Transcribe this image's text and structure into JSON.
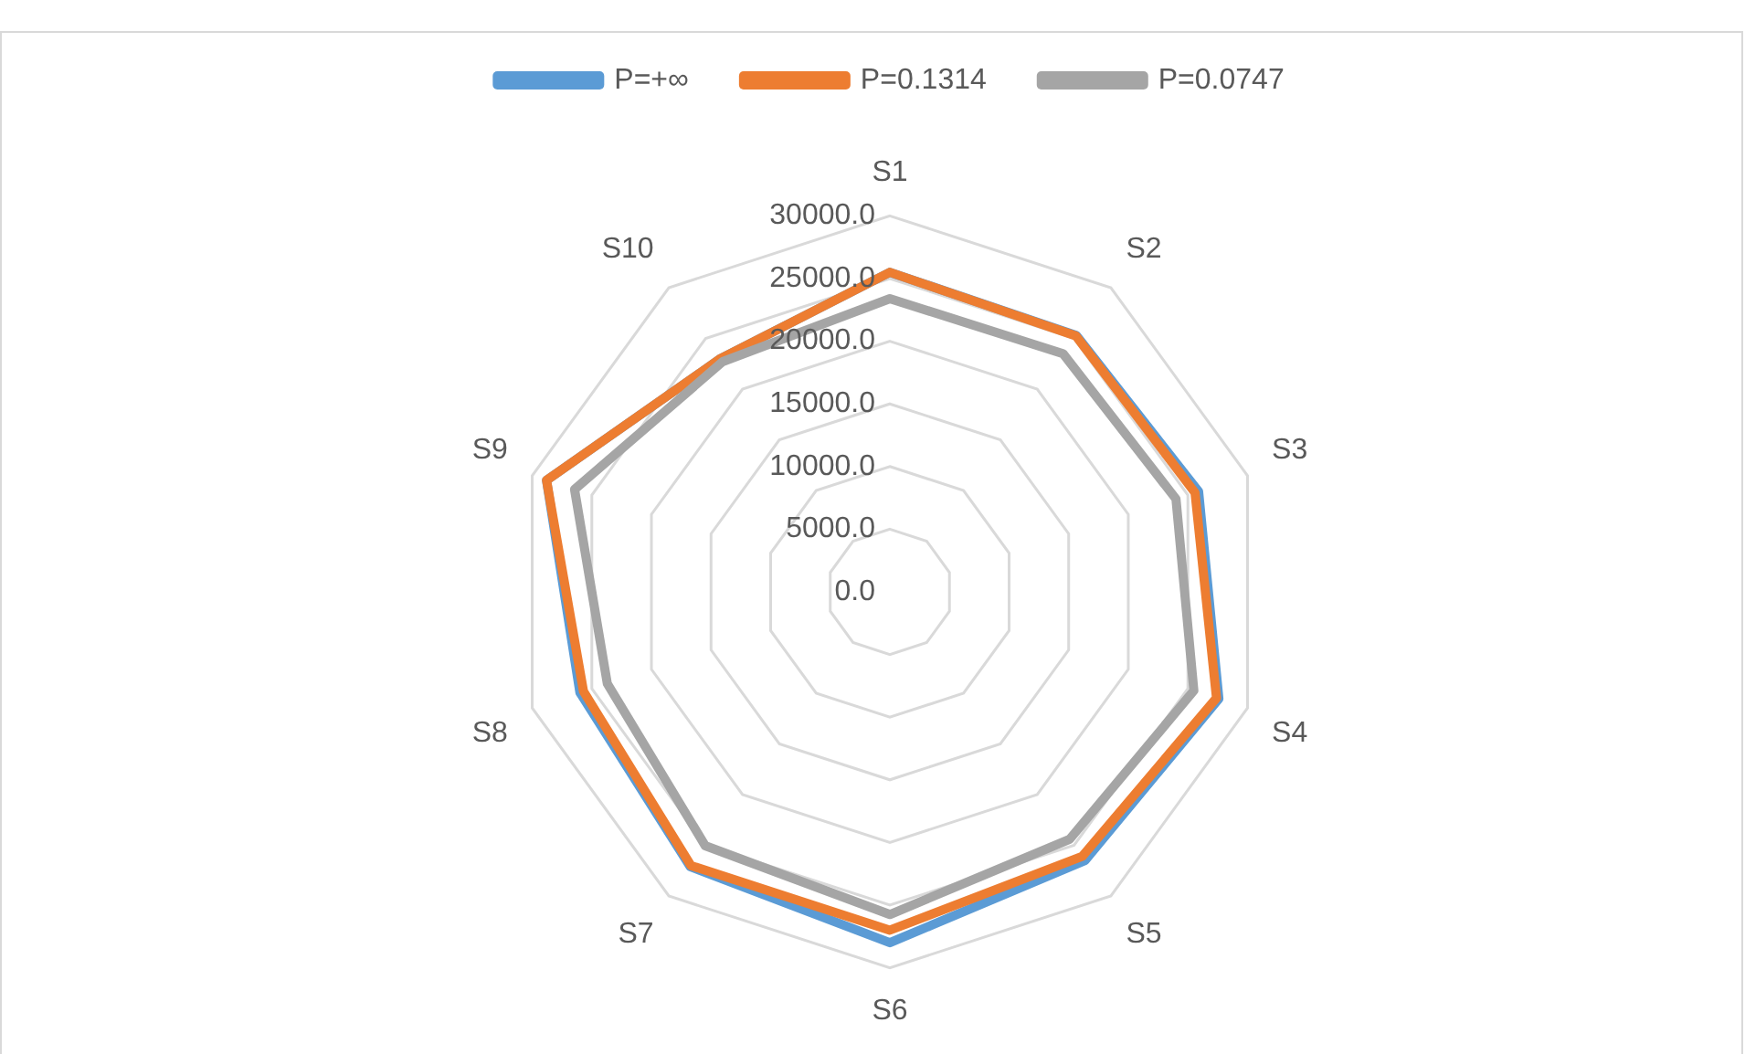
{
  "chart_data": {
    "type": "radar",
    "categories": [
      "S1",
      "S2",
      "S3",
      "S4",
      "S5",
      "S6",
      "S7",
      "S8",
      "S9",
      "S10"
    ],
    "series": [
      {
        "name": "P=+∞",
        "color": "#5b9bd5",
        "values": [
          25500,
          25300,
          25900,
          27600,
          26500,
          28000,
          27100,
          26000,
          28800,
          23000
        ]
      },
      {
        "name": "P=0.1314",
        "color": "#ed7d31",
        "values": [
          25500,
          25250,
          25600,
          27400,
          26100,
          27000,
          27000,
          25700,
          28800,
          23000
        ]
      },
      {
        "name": "P=0.0747",
        "color": "#a5a5a5",
        "values": [
          23400,
          23500,
          24000,
          25500,
          24400,
          25750,
          25050,
          23700,
          26450,
          22700
        ]
      }
    ],
    "ylim": [
      0,
      30000
    ],
    "yticks": [
      {
        "value": 0,
        "label": "0.0"
      },
      {
        "value": 5000,
        "label": "5000.0"
      },
      {
        "value": 10000,
        "label": "10000.0"
      },
      {
        "value": 15000,
        "label": "15000.0"
      },
      {
        "value": 20000,
        "label": "20000.0"
      },
      {
        "value": 25000,
        "label": "25000.0"
      },
      {
        "value": 30000,
        "label": "30000.0"
      }
    ],
    "grid": true,
    "legend": "top",
    "marker": "none"
  }
}
